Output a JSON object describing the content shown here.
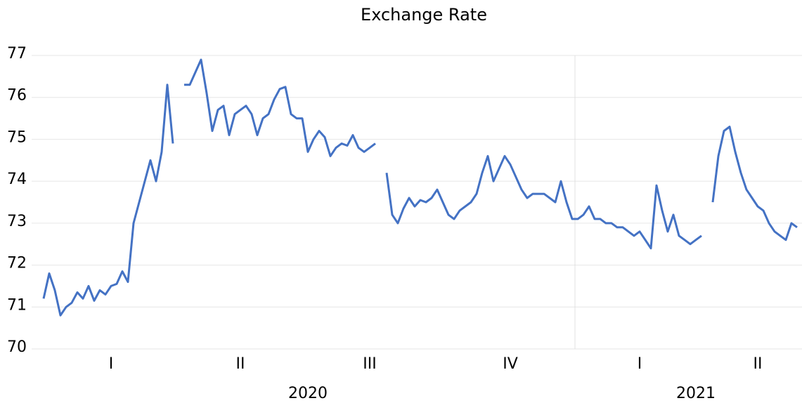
{
  "chart_data": {
    "type": "line",
    "title": "Exchange Rate",
    "categories": [
      null,
      null,
      null,
      null,
      null,
      null,
      null,
      null,
      null,
      null,
      null,
      null,
      "I",
      null,
      null,
      null,
      null,
      null,
      null,
      null,
      null,
      null,
      null,
      null,
      null,
      null,
      null,
      null,
      null,
      null,
      null,
      null,
      null,
      null,
      null,
      "II",
      null,
      null,
      null,
      null,
      null,
      null,
      null,
      null,
      null,
      null,
      null,
      null,
      null,
      null,
      null,
      null,
      null,
      null,
      null,
      null,
      null,
      null,
      "III",
      null,
      null,
      null,
      null,
      null,
      null,
      null,
      null,
      null,
      null,
      null,
      null,
      null,
      null,
      null,
      null,
      null,
      null,
      null,
      null,
      null,
      null,
      null,
      null,
      "IV",
      null,
      null,
      null,
      null,
      null,
      null,
      null,
      null,
      null,
      null,
      null,
      null,
      null,
      null,
      null,
      null,
      null,
      null,
      null,
      null,
      null,
      null,
      "I",
      null,
      null,
      null,
      null,
      null,
      null,
      null,
      null,
      null,
      null,
      null,
      null,
      null,
      null,
      null,
      null,
      null,
      null,
      null,
      null,
      "II",
      null,
      null,
      null,
      null,
      null,
      null,
      null
    ],
    "categories_year": [
      null,
      null,
      null,
      null,
      null,
      null,
      null,
      null,
      null,
      null,
      null,
      null,
      null,
      null,
      null,
      null,
      null,
      null,
      null,
      null,
      null,
      null,
      null,
      null,
      null,
      null,
      null,
      null,
      null,
      null,
      null,
      null,
      null,
      null,
      null,
      null,
      null,
      null,
      null,
      null,
      null,
      null,
      null,
      null,
      null,
      null,
      null,
      "2020",
      null,
      null,
      null,
      null,
      null,
      null,
      null,
      null,
      null,
      null,
      null,
      null,
      null,
      null,
      null,
      null,
      null,
      null,
      null,
      null,
      null,
      null,
      null,
      null,
      null,
      null,
      null,
      null,
      null,
      null,
      null,
      null,
      null,
      null,
      null,
      null,
      null,
      null,
      null,
      null,
      null,
      null,
      null,
      null,
      null,
      null,
      null,
      null,
      null,
      null,
      null,
      null,
      null,
      null,
      null,
      null,
      null,
      null,
      null,
      null,
      null,
      null,
      null,
      null,
      null,
      null,
      null,
      null,
      "2021",
      null,
      null,
      null,
      null,
      null,
      null,
      null,
      null,
      null,
      null,
      null,
      null,
      null,
      null,
      null,
      null,
      null,
      null
    ],
    "series": [
      {
        "name": "Exchange Rate",
        "color": "#4472c4",
        "values": [
          71.2,
          71.8,
          71.4,
          70.8,
          71.0,
          71.1,
          71.35,
          71.2,
          71.5,
          71.15,
          71.4,
          71.3,
          71.5,
          71.55,
          71.85,
          71.6,
          73.0,
          73.5,
          74.0,
          74.5,
          74.0,
          74.7,
          76.3,
          74.9,
          null,
          76.3,
          76.3,
          76.6,
          76.9,
          76.1,
          75.2,
          75.7,
          75.8,
          75.1,
          75.6,
          75.7,
          75.8,
          75.6,
          75.1,
          75.5,
          75.6,
          75.95,
          76.2,
          76.25,
          75.6,
          75.5,
          75.5,
          74.7,
          75.0,
          75.2,
          75.05,
          74.6,
          74.8,
          74.9,
          74.85,
          75.1,
          74.8,
          74.7,
          74.8,
          74.9,
          null,
          74.2,
          73.2,
          73.0,
          73.35,
          73.6,
          73.4,
          73.55,
          73.5,
          73.6,
          73.8,
          73.5,
          73.2,
          73.1,
          73.3,
          73.4,
          73.5,
          73.7,
          74.2,
          74.6,
          74.0,
          74.3,
          74.6,
          74.4,
          74.1,
          73.8,
          73.6,
          73.7,
          73.7,
          73.7,
          73.6,
          73.5,
          74.0,
          73.5,
          73.1,
          73.1,
          73.2,
          73.4,
          73.1,
          73.1,
          73.0,
          73.0,
          72.9,
          72.9,
          72.8,
          72.7,
          72.8,
          72.6,
          72.4,
          73.9,
          73.3,
          72.8,
          73.2,
          72.7,
          72.6,
          72.5,
          72.6,
          72.7,
          null,
          73.5,
          74.6,
          75.2,
          75.3,
          74.7,
          74.2,
          73.8,
          73.6,
          73.4,
          73.3,
          73.0,
          72.8,
          72.7,
          72.6,
          73.0,
          72.9
        ]
      }
    ],
    "ylim": [
      70,
      77
    ],
    "yticks": [
      70,
      71,
      72,
      73,
      74,
      75,
      76,
      77
    ],
    "grid": true
  }
}
